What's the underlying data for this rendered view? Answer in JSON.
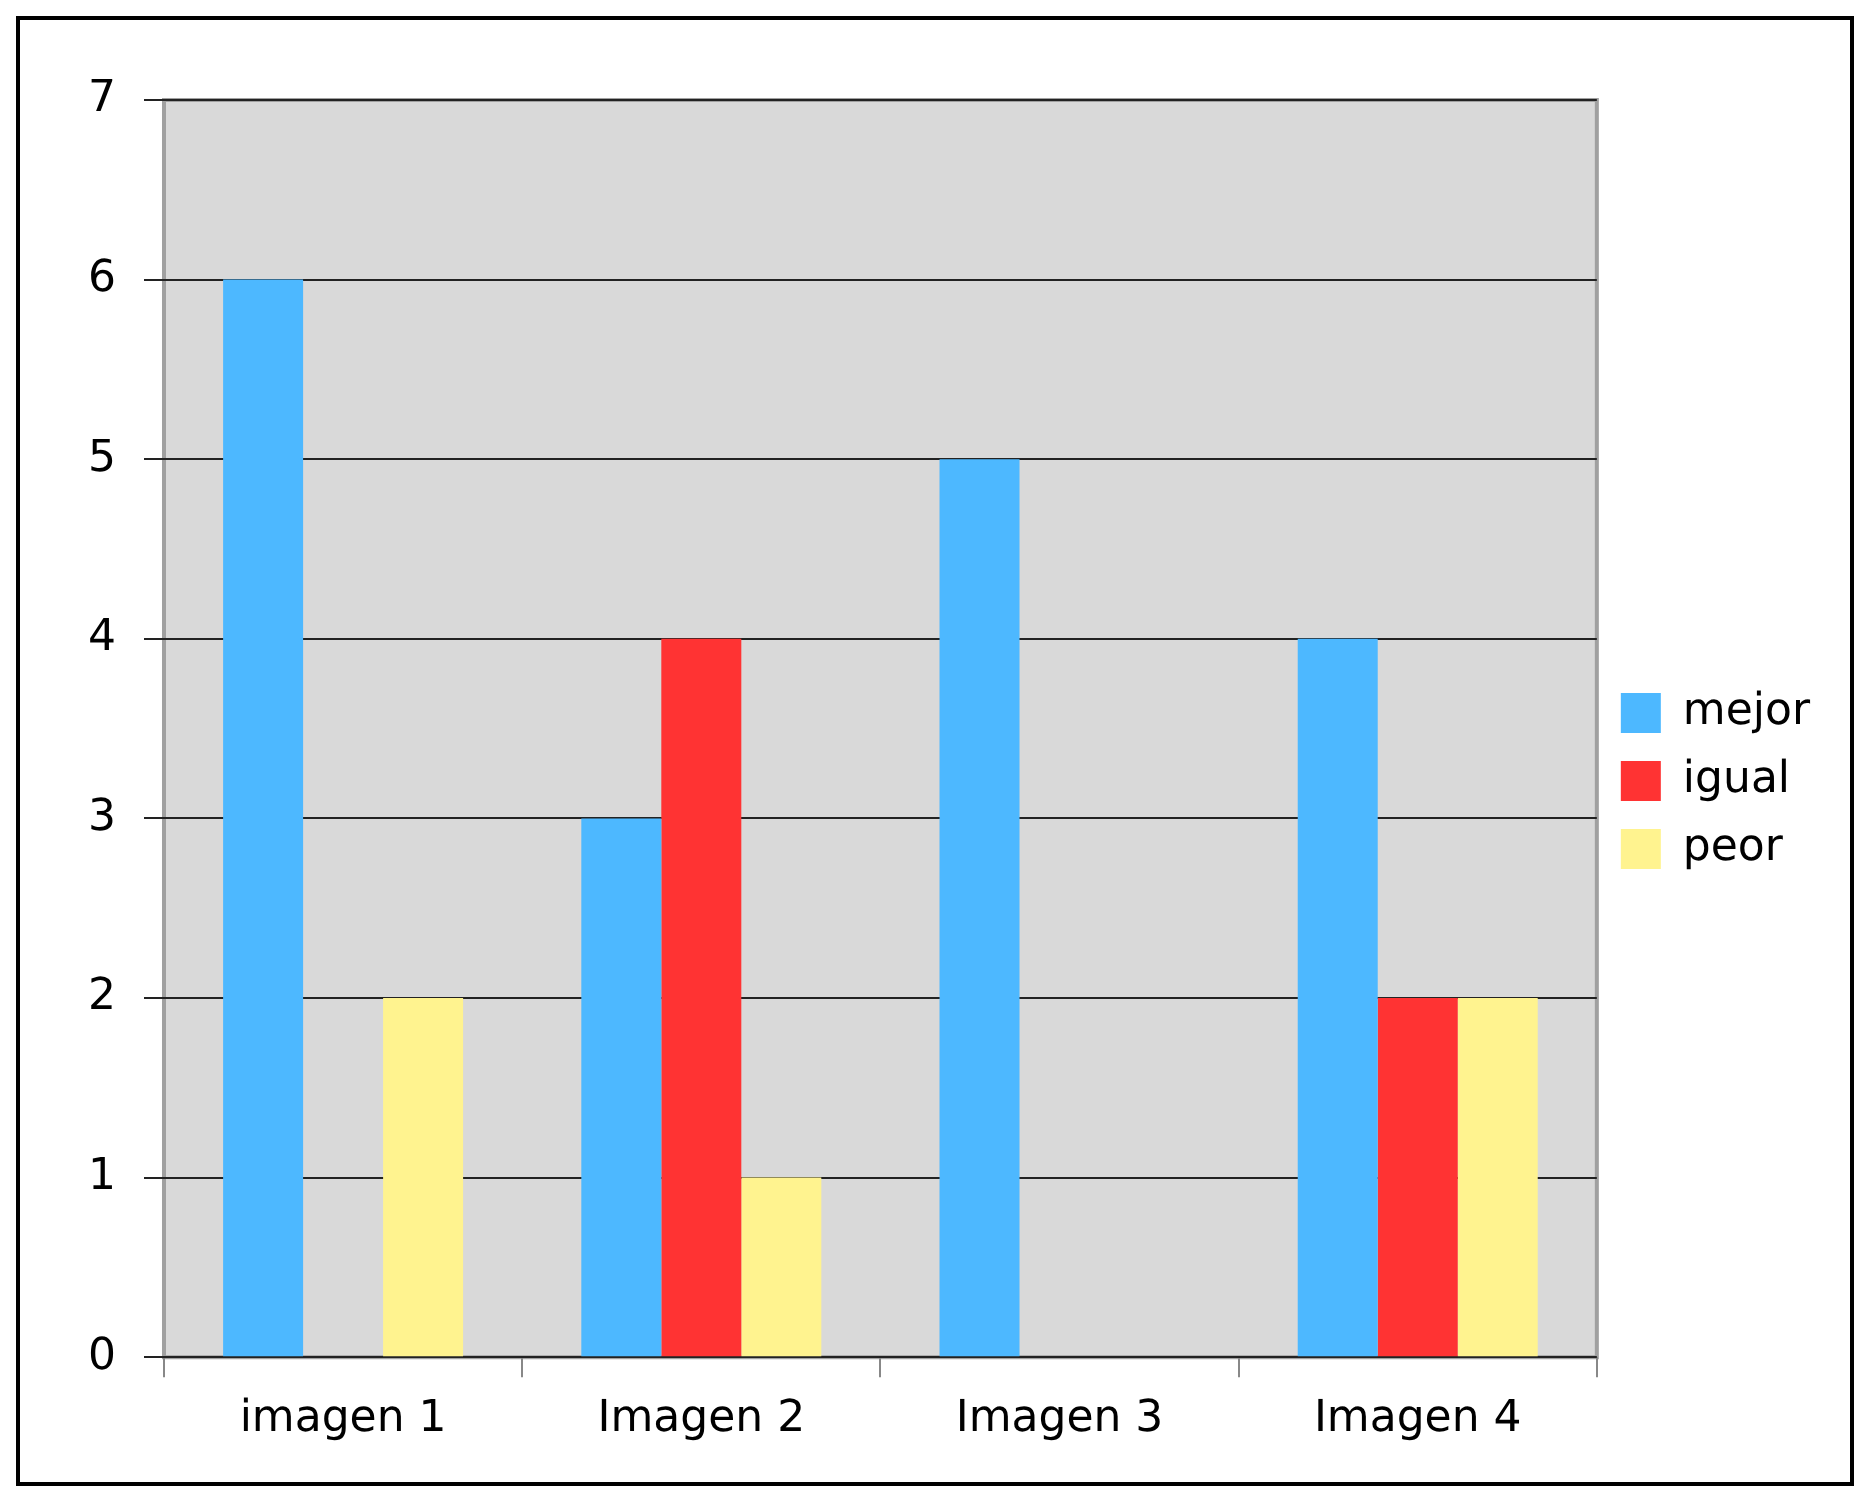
{
  "chart_data": {
    "type": "bar",
    "categories": [
      "imagen 1",
      "Imagen 2",
      "Imagen 3",
      "Imagen 4"
    ],
    "series": [
      {
        "name": "mejor",
        "color": "#4db8ff",
        "values": [
          6,
          3,
          5,
          4
        ]
      },
      {
        "name": "igual",
        "color": "#ff3333",
        "values": [
          0,
          4,
          0,
          2
        ]
      },
      {
        "name": "peor",
        "color": "#fff38f",
        "values": [
          2,
          1,
          0,
          2
        ]
      }
    ],
    "ylim": [
      0,
      7
    ],
    "yticks": [
      0,
      1,
      2,
      3,
      4,
      5,
      6,
      7
    ],
    "grid": "y",
    "legend": "right"
  }
}
